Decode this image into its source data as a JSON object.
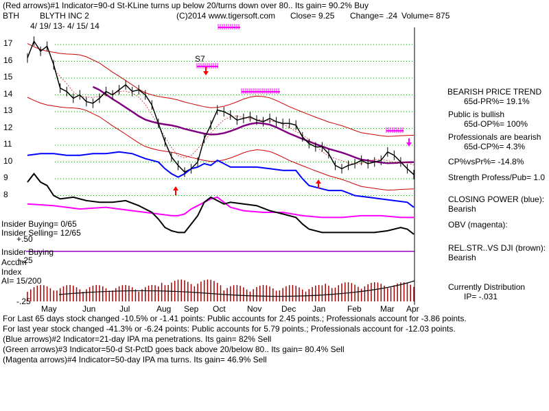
{
  "header": {
    "line1": "(Red arrows)#1 Indicator=90-d St-KLine turns up below 20/turns down over 80..  Its gain= 90.2% Buy",
    "ticker": "BTH",
    "company": "BLYTH INC 2",
    "source": "(C)2014 www.tigersoft.com",
    "close": "Close=  9.25",
    "change": "Change= .24",
    "volume": "Volume= 875",
    "date_range": "4/ 19/ 13- 4/ 15/ 14"
  },
  "right_panel": {
    "trend_title": "BEARISH PRICE TREND",
    "pr": "65d-PR%= 19.1%",
    "public_title": "Public is bullish",
    "op": "65d-OP%= 100%",
    "prof_title": "Professionals are bearish",
    "cp": "65d-CP%= 4.3%",
    "cp_vs_pr": "CP%vsPr%= -14.8%",
    "strength": "Strength Profess/Pub= 1.0",
    "closing_power_title": "CLOSING POWER (blue):",
    "closing_power_value": "Bearish",
    "obv": "OBV (magenta):",
    "relstr_title": "REL.STR..VS DJI (brown):",
    "relstr_value": "Bearish",
    "distribution": "Currently Distribution",
    "ip": "IP= -.031"
  },
  "left_labels": {
    "insider_buying_count": "Insider Buying= 0/65",
    "insider_selling_count": "Insider Selling= 12/65",
    "insider_buying": "Insider Buying",
    "accum": "Accum",
    "index": "Index",
    "ai": "AI= 15/200"
  },
  "footer": {
    "line1": "For Last 65 days stock changed -10.5% or -1.41 points:  Public accounts for  2.45 points.;  Professionals account for -3.86 points.",
    "line2": "For last year stock changed -41.3% or -6.24 points:  Public accounts for  5.79 points.;  Professionals account for -12.03 points.",
    "line3": "(Blue arrows)#2 Indicator=21-day IPA ma penetrations. Its gain= 82% Sell",
    "line4": "(Green arrows)#3 Indicator=50-d St-PctD goes back above 20/below 80..  Its gain= 80.4% Sell",
    "line5": "(Magenta arrows)#4 Indicator=50-day IPA ma turns. Its gain= 46.9% Sell"
  },
  "annotations": {
    "s7": "S7"
  },
  "chart_data": {
    "type": "line",
    "x_months": [
      "May",
      "Jun",
      "Jul",
      "Aug",
      "Sep",
      "Oct",
      "Nov",
      "Dec",
      "Jan",
      "Feb",
      "Mar",
      "Apr"
    ],
    "price_ticks": [
      "17",
      "16",
      "15",
      "14",
      "13",
      "12",
      "11",
      "10",
      "9",
      "8"
    ],
    "ai_ticks": [
      "+.50",
      "+.25",
      "-.25"
    ],
    "price_ylim": [
      8,
      17
    ],
    "colors": {
      "price": "#000000",
      "band": "#cc0000",
      "ma": "#800080",
      "closing_power": "#0000ff",
      "obv": "#ff00ff",
      "relstr": "#000000",
      "accum_bars": "#a00000",
      "accum_line": "#000000",
      "grid": "#009900",
      "arrow_red": "#ff0000",
      "arrow_magenta": "#ff00ff"
    },
    "series": [
      {
        "name": "Price",
        "points": [
          [
            0,
            16.2
          ],
          [
            2,
            17.2
          ],
          [
            4,
            16.6
          ],
          [
            6,
            16.9
          ],
          [
            8,
            15.8
          ],
          [
            10,
            14.4
          ],
          [
            12,
            14.2
          ],
          [
            14,
            13.8
          ],
          [
            16,
            14.0
          ],
          [
            18,
            13.6
          ],
          [
            20,
            13.5
          ],
          [
            22,
            13.8
          ],
          [
            24,
            14.2
          ],
          [
            26,
            14.0
          ],
          [
            28,
            14.3
          ],
          [
            30,
            14.6
          ],
          [
            32,
            14.2
          ],
          [
            34,
            14.3
          ],
          [
            36,
            14.0
          ],
          [
            38,
            13.4
          ],
          [
            40,
            12.3
          ],
          [
            42,
            11.2
          ],
          [
            44,
            10.3
          ],
          [
            46,
            9.8
          ],
          [
            48,
            9.4
          ],
          [
            50,
            9.6
          ],
          [
            52,
            10.0
          ],
          [
            54,
            11.4
          ],
          [
            56,
            12.2
          ],
          [
            58,
            13.1
          ],
          [
            60,
            13.0
          ],
          [
            62,
            12.8
          ],
          [
            64,
            12.5
          ],
          [
            66,
            12.6
          ],
          [
            68,
            12.7
          ],
          [
            70,
            12.5
          ],
          [
            72,
            12.4
          ],
          [
            74,
            12.6
          ],
          [
            76,
            12.4
          ],
          [
            78,
            12.3
          ],
          [
            80,
            12.3
          ],
          [
            82,
            12.2
          ],
          [
            84,
            11.5
          ],
          [
            86,
            11.1
          ],
          [
            88,
            10.9
          ],
          [
            90,
            10.9
          ],
          [
            92,
            10.5
          ],
          [
            94,
            9.8
          ],
          [
            96,
            9.6
          ],
          [
            98,
            9.8
          ],
          [
            100,
            9.9
          ],
          [
            102,
            10.1
          ],
          [
            104,
            9.9
          ],
          [
            106,
            10.0
          ],
          [
            108,
            10.1
          ],
          [
            110,
            10.6
          ],
          [
            112,
            10.4
          ],
          [
            114,
            10.0
          ],
          [
            116,
            9.6
          ],
          [
            118,
            9.25
          ]
        ]
      },
      {
        "name": "Closing Power",
        "points": [
          [
            0,
            10.4
          ],
          [
            4,
            10.5
          ],
          [
            8,
            10.5
          ],
          [
            12,
            10.4
          ],
          [
            16,
            10.4
          ],
          [
            20,
            10.5
          ],
          [
            24,
            10.5
          ],
          [
            28,
            10.6
          ],
          [
            32,
            10.5
          ],
          [
            36,
            10.2
          ],
          [
            40,
            10.0
          ],
          [
            42,
            9.6
          ],
          [
            44,
            9.3
          ],
          [
            46,
            9.1
          ],
          [
            48,
            9.3
          ],
          [
            50,
            9.6
          ],
          [
            52,
            9.7
          ],
          [
            54,
            9.9
          ],
          [
            56,
            9.8
          ],
          [
            58,
            10.1
          ],
          [
            60,
            9.9
          ],
          [
            62,
            9.7
          ],
          [
            66,
            9.7
          ],
          [
            70,
            9.7
          ],
          [
            74,
            9.6
          ],
          [
            78,
            9.5
          ],
          [
            82,
            9.5
          ],
          [
            84,
            9.0
          ],
          [
            86,
            8.6
          ],
          [
            88,
            8.5
          ],
          [
            92,
            8.3
          ],
          [
            96,
            8.3
          ],
          [
            100,
            8.0
          ],
          [
            104,
            7.9
          ],
          [
            108,
            7.8
          ],
          [
            112,
            7.7
          ],
          [
            116,
            7.6
          ],
          [
            118,
            7.3
          ]
        ]
      },
      {
        "name": "OBV",
        "points": [
          [
            0,
            7.5
          ],
          [
            8,
            7.4
          ],
          [
            16,
            7.2
          ],
          [
            24,
            7.3
          ],
          [
            32,
            7.1
          ],
          [
            36,
            7.0
          ],
          [
            40,
            6.9
          ],
          [
            44,
            6.8
          ],
          [
            46,
            6.8
          ],
          [
            48,
            6.9
          ],
          [
            50,
            7.2
          ],
          [
            52,
            7.4
          ],
          [
            54,
            7.6
          ],
          [
            56,
            7.8
          ],
          [
            58,
            7.9
          ],
          [
            60,
            7.6
          ],
          [
            62,
            7.3
          ],
          [
            66,
            7.1
          ],
          [
            72,
            7.0
          ],
          [
            78,
            7.0
          ],
          [
            84,
            6.8
          ],
          [
            90,
            6.7
          ],
          [
            96,
            6.7
          ],
          [
            102,
            6.8
          ],
          [
            108,
            6.8
          ],
          [
            114,
            6.7
          ],
          [
            118,
            6.7
          ]
        ]
      },
      {
        "name": "Rel.Str vs DJI",
        "points": [
          [
            0,
            8.8
          ],
          [
            2,
            9.3
          ],
          [
            4,
            8.8
          ],
          [
            6,
            8.6
          ],
          [
            8,
            8.0
          ],
          [
            10,
            7.8
          ],
          [
            14,
            7.9
          ],
          [
            18,
            7.7
          ],
          [
            22,
            7.6
          ],
          [
            26,
            7.6
          ],
          [
            30,
            7.7
          ],
          [
            34,
            7.4
          ],
          [
            36,
            7.2
          ],
          [
            38,
            7.0
          ],
          [
            40,
            6.6
          ],
          [
            42,
            6.1
          ],
          [
            44,
            5.9
          ],
          [
            46,
            5.8
          ],
          [
            48,
            5.8
          ],
          [
            50,
            6.3
          ],
          [
            52,
            6.8
          ],
          [
            54,
            7.6
          ],
          [
            56,
            7.9
          ],
          [
            58,
            7.7
          ],
          [
            60,
            7.5
          ],
          [
            62,
            7.6
          ],
          [
            66,
            7.5
          ],
          [
            70,
            7.4
          ],
          [
            74,
            7.1
          ],
          [
            78,
            6.9
          ],
          [
            82,
            6.7
          ],
          [
            84,
            6.3
          ],
          [
            86,
            6.0
          ],
          [
            90,
            5.8
          ],
          [
            94,
            5.8
          ],
          [
            98,
            5.8
          ],
          [
            102,
            5.8
          ],
          [
            106,
            5.8
          ],
          [
            110,
            5.9
          ],
          [
            114,
            6.1
          ],
          [
            116,
            6.0
          ],
          [
            118,
            5.7
          ]
        ]
      }
    ]
  }
}
